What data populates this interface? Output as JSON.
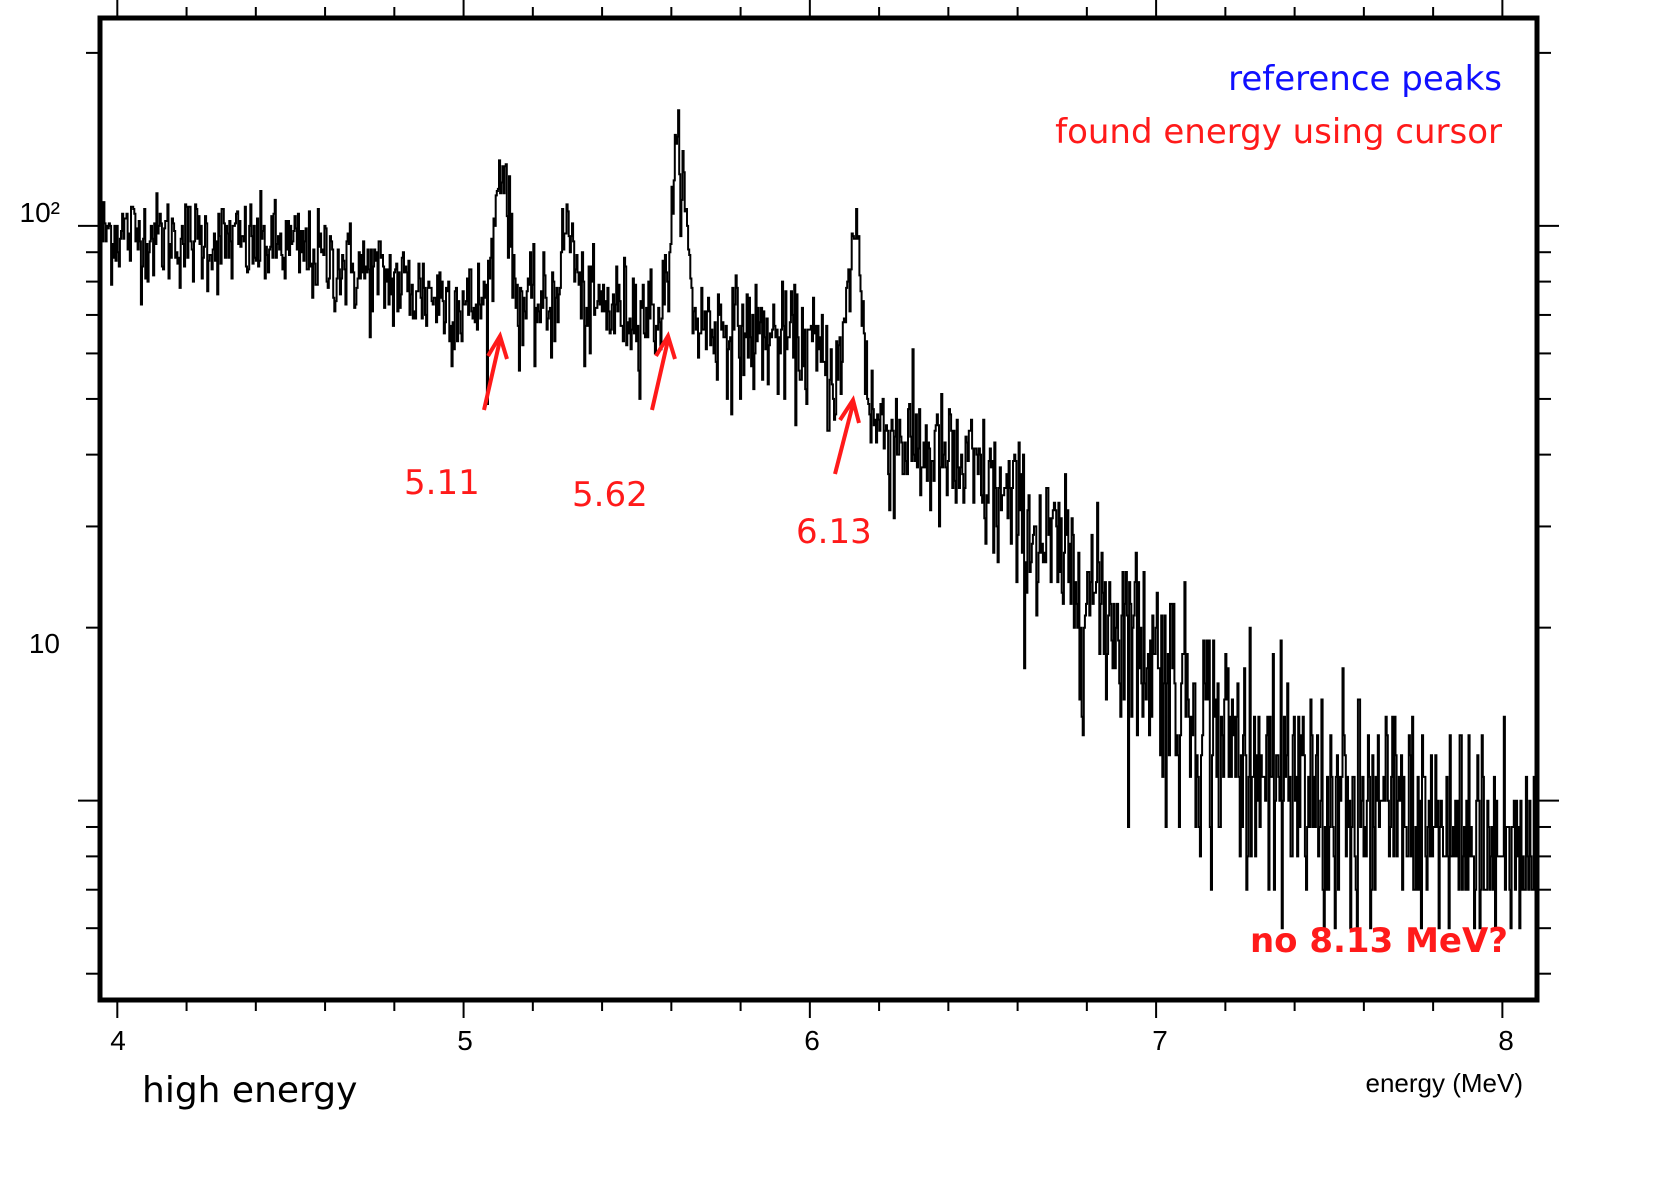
{
  "chart_data": {
    "type": "line",
    "style": "histogram-step",
    "title": "",
    "xlabel": "energy (MeV)",
    "ylabel": "",
    "xlim": [
      3.95,
      8.1
    ],
    "ylim": [
      4.5,
      230
    ],
    "yscale": "log",
    "x_ticks": [
      4,
      5,
      6,
      7,
      8
    ],
    "x_tick_labels": [
      "4",
      "5",
      "6",
      "7",
      "8"
    ],
    "y_ticks": [
      10,
      100
    ],
    "y_tick_labels": [
      "10",
      "10²"
    ],
    "grid": false,
    "legend_placement": "top-right",
    "legend": [
      {
        "label": "reference peaks",
        "color": "#1010ff"
      },
      {
        "label": "found energy using cursor",
        "color": "#ff1a1a"
      }
    ],
    "series_color": "#000000",
    "background_level_points": [
      {
        "x": 3.95,
        "y": 98
      },
      {
        "x": 4.5,
        "y": 92
      },
      {
        "x": 5.0,
        "y": 73
      },
      {
        "x": 5.5,
        "y": 72
      },
      {
        "x": 6.0,
        "y": 62
      },
      {
        "x": 6.2,
        "y": 45
      },
      {
        "x": 6.5,
        "y": 36
      },
      {
        "x": 7.0,
        "y": 18
      },
      {
        "x": 7.3,
        "y": 11
      },
      {
        "x": 8.1,
        "y": 7.8
      }
    ],
    "peaks": [
      {
        "x": 5.11,
        "y": 130
      },
      {
        "x": 5.3,
        "y": 100
      },
      {
        "x": 5.62,
        "y": 135
      },
      {
        "x": 6.13,
        "y": 98
      }
    ],
    "annotations": [
      {
        "text": "5.11",
        "x": 5.11,
        "color": "#ff1a1a"
      },
      {
        "text": "5.62",
        "x": 5.62,
        "color": "#ff1a1a"
      },
      {
        "text": "6.13",
        "x": 6.13,
        "color": "#ff1a1a"
      }
    ],
    "note": {
      "text": "no 8.13 MeV?",
      "color": "#ff1a1a",
      "placement": "bottom-right"
    }
  },
  "caption": "high energy"
}
